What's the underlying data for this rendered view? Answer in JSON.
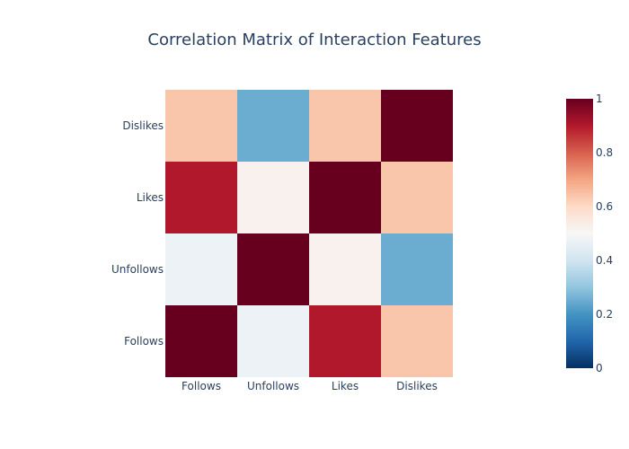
{
  "chart_data": {
    "type": "heatmap",
    "title": "Correlation Matrix of Interaction Features",
    "x_categories": [
      "Follows",
      "Unfollows",
      "Likes",
      "Dislikes"
    ],
    "y_categories": [
      "Follows",
      "Unfollows",
      "Likes",
      "Dislikes"
    ],
    "matrix": [
      [
        1.0,
        0.47,
        0.9,
        0.64
      ],
      [
        0.47,
        1.0,
        0.52,
        0.25
      ],
      [
        0.9,
        0.52,
        1.0,
        0.64
      ],
      [
        0.64,
        0.25,
        0.64,
        1.0
      ]
    ],
    "colorscale": "RdBu-reversed",
    "zlim": [
      0,
      1
    ],
    "colorbar_ticks": [
      0,
      0.2,
      0.4,
      0.6,
      0.8,
      1
    ],
    "colorbar_tick_labels": [
      "0",
      "0.2",
      "0.4",
      "0.6",
      "0.8",
      "1"
    ],
    "colorbar_placement": "right"
  }
}
